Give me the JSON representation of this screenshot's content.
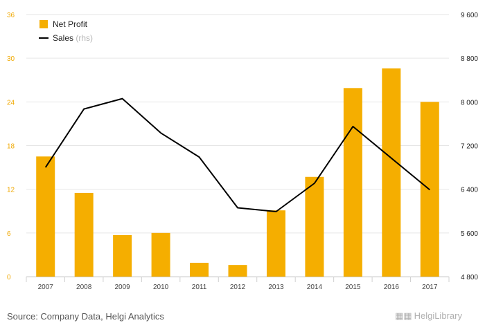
{
  "chart_data": {
    "type": "bar",
    "categories": [
      "2007",
      "2008",
      "2009",
      "2010",
      "2011",
      "2012",
      "2013",
      "2014",
      "2015",
      "2016",
      "2017"
    ],
    "series": [
      {
        "name": "Net Profit",
        "type": "bar",
        "axis": "left",
        "color": "#f5ae00",
        "values": [
          16.5,
          11.5,
          5.7,
          6.0,
          1.9,
          1.6,
          9.1,
          13.7,
          25.9,
          28.6,
          24.0
        ]
      },
      {
        "name": "Sales",
        "name_suffix": "(rhs)",
        "type": "line",
        "axis": "right",
        "color": "#000000",
        "values": [
          6800,
          7870,
          8060,
          7430,
          6990,
          6060,
          5990,
          6510,
          7550,
          6970,
          6390
        ]
      }
    ],
    "y_left": {
      "min": 0,
      "max": 36,
      "ticks": [
        "0",
        "6",
        "12",
        "18",
        "24",
        "30",
        "36"
      ],
      "color": "#f0a800"
    },
    "y_right": {
      "min": 4800,
      "max": 9600,
      "ticks": [
        "4 800",
        "5 600",
        "6 400",
        "7 200",
        "8 000",
        "8 800",
        "9 600"
      ]
    },
    "grid": true,
    "legend_position": "top-left"
  },
  "footer": {
    "source": "Source: Company Data, Helgi Analytics",
    "logo_text": "HelgiLibrary",
    "logo_icon": "helgi-building-icon"
  }
}
